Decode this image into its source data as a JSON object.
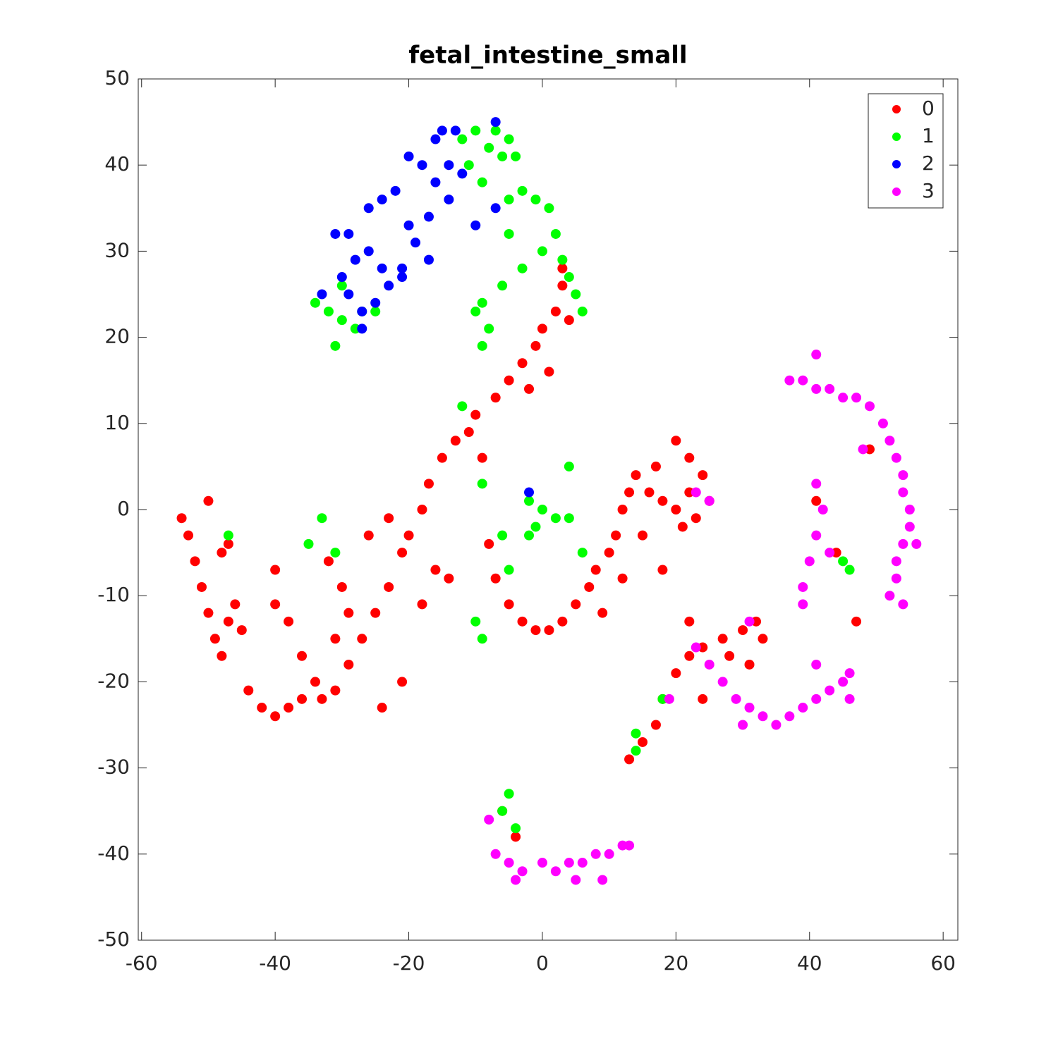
{
  "chart_data": {
    "type": "scatter",
    "title": "fetal_intestine_small",
    "xlim": [
      -60.5,
      62.2
    ],
    "ylim": [
      -50,
      50
    ],
    "xticks": [
      -60,
      -40,
      -20,
      0,
      20,
      40,
      60
    ],
    "yticks": [
      -50,
      -40,
      -30,
      -20,
      -10,
      0,
      10,
      20,
      30,
      40,
      50
    ],
    "legend": "top-right",
    "series": [
      {
        "name": "0",
        "color": "#ff0000",
        "x": [
          -54,
          -53,
          -52,
          -51,
          -50,
          -49,
          -48,
          -47,
          -50,
          -48,
          -46,
          -45,
          -44,
          -42,
          -40,
          -38,
          -36,
          -33,
          -31,
          -29,
          -27,
          -25,
          -23,
          -21,
          -20,
          -18,
          -17,
          -15,
          -13,
          -11,
          -10,
          -9,
          -40,
          -40,
          -38,
          -36,
          -34,
          -32,
          -30,
          -29,
          -31,
          -26,
          -23,
          -21,
          -24,
          -16,
          -14,
          -18,
          -47,
          -7,
          -5,
          -3,
          -1,
          0,
          2,
          3,
          3,
          4,
          1,
          -2,
          -8,
          -7,
          -5,
          -3,
          -1,
          1,
          3,
          5,
          7,
          8,
          10,
          11,
          12,
          13,
          14,
          16,
          18,
          20,
          21,
          22,
          24,
          25,
          22,
          20,
          17,
          9,
          12,
          15,
          18,
          23,
          13,
          15,
          17,
          18,
          20,
          22,
          24,
          27,
          30,
          32,
          33,
          31,
          24,
          22,
          28,
          47,
          44,
          41,
          49,
          -4,
          -6
        ],
        "values": [
          -1,
          -3,
          -6,
          -9,
          -12,
          -15,
          -17,
          -13,
          1,
          -5,
          -11,
          -14,
          -21,
          -23,
          -24,
          -23,
          -22,
          -22,
          -21,
          -18,
          -15,
          -12,
          -9,
          -5,
          -3,
          0,
          3,
          6,
          8,
          9,
          11,
          6,
          -7,
          -11,
          -13,
          -17,
          -20,
          -6,
          -9,
          -12,
          -15,
          -3,
          -1,
          -20,
          -23,
          -7,
          -8,
          -11,
          -4,
          13,
          15,
          17,
          19,
          21,
          23,
          26,
          28,
          22,
          16,
          14,
          -4,
          -8,
          -11,
          -13,
          -14,
          -14,
          -13,
          -11,
          -9,
          -7,
          -5,
          -3,
          0,
          2,
          4,
          2,
          1,
          0,
          -2,
          2,
          4,
          1,
          6,
          8,
          5,
          -12,
          -8,
          -3,
          -7,
          -1,
          -29,
          -27,
          -25,
          -22,
          -19,
          -17,
          -16,
          -15,
          -14,
          -13,
          -15,
          -18,
          -22,
          -13,
          -17,
          -13,
          -5,
          1,
          7,
          -38,
          -35
        ]
      },
      {
        "name": "1",
        "color": "#00ff00",
        "x": [
          -12,
          -10,
          -8,
          -11,
          -9,
          -6,
          -5,
          -4,
          -7,
          -3,
          -1,
          1,
          2,
          0,
          3,
          4,
          5,
          6,
          -5,
          -5,
          -3,
          -6,
          -9,
          -10,
          -8,
          -9,
          -34,
          -32,
          -30,
          -31,
          -28,
          -27,
          -25,
          -30,
          -12,
          -33,
          -35,
          -31,
          -9,
          4,
          -2,
          0,
          -1,
          2,
          -2,
          4,
          -6,
          -5,
          -10,
          -9,
          6,
          -47,
          18,
          14,
          14,
          -5,
          -6,
          -4,
          46,
          45
        ],
        "values": [
          43,
          44,
          42,
          40,
          38,
          41,
          43,
          41,
          44,
          37,
          36,
          35,
          32,
          30,
          29,
          27,
          25,
          23,
          36,
          32,
          28,
          26,
          24,
          23,
          21,
          19,
          24,
          23,
          22,
          19,
          21,
          23,
          23,
          26,
          12,
          -1,
          -4,
          -5,
          3,
          5,
          1,
          0,
          -2,
          -1,
          -3,
          -1,
          -3,
          -7,
          -13,
          -15,
          -5,
          -3,
          -22,
          -26,
          -28,
          -33,
          -35,
          -37,
          -7,
          -6
        ]
      },
      {
        "name": "2",
        "color": "#0000ff",
        "x": [
          -30,
          -28,
          -26,
          -24,
          -29,
          -27,
          -25,
          -23,
          -27,
          -31,
          -29,
          -26,
          -24,
          -22,
          -20,
          -18,
          -16,
          -14,
          -17,
          -20,
          -19,
          -21,
          -17,
          -15,
          -13,
          -16,
          -14,
          -12,
          -10,
          -7,
          -7,
          -2,
          -33,
          -21
        ],
        "values": [
          27,
          29,
          30,
          28,
          25,
          23,
          24,
          26,
          21,
          32,
          32,
          35,
          36,
          37,
          41,
          40,
          38,
          36,
          34,
          33,
          31,
          28,
          29,
          44,
          44,
          43,
          40,
          39,
          33,
          45,
          35,
          2,
          25,
          27
        ]
      },
      {
        "name": "3",
        "color": "#ff00ff",
        "x": [
          37,
          39,
          41,
          43,
          45,
          47,
          49,
          51,
          52,
          53,
          54,
          54,
          55,
          55,
          54,
          53,
          53,
          52,
          54,
          56,
          41,
          48,
          41,
          42,
          41,
          40,
          39,
          39,
          43,
          23,
          25,
          27,
          29,
          31,
          33,
          35,
          37,
          39,
          41,
          43,
          45,
          46,
          46,
          41,
          30,
          23,
          25,
          -8,
          -7,
          -5,
          -3,
          0,
          2,
          4,
          6,
          8,
          10,
          12,
          13,
          -4,
          9,
          5,
          31,
          19
        ],
        "values": [
          15,
          15,
          14,
          14,
          13,
          13,
          12,
          10,
          8,
          6,
          4,
          2,
          0,
          -2,
          -4,
          -6,
          -8,
          -10,
          -11,
          -4,
          18,
          7,
          3,
          0,
          -3,
          -6,
          -9,
          -11,
          -5,
          -16,
          -18,
          -20,
          -22,
          -23,
          -24,
          -25,
          -24,
          -23,
          -22,
          -21,
          -20,
          -19,
          -22,
          -18,
          -25,
          2,
          1,
          -36,
          -40,
          -41,
          -42,
          -41,
          -42,
          -41,
          -41,
          -40,
          -40,
          -39,
          -39,
          -43,
          -43,
          -43,
          -13,
          -22
        ]
      }
    ]
  }
}
